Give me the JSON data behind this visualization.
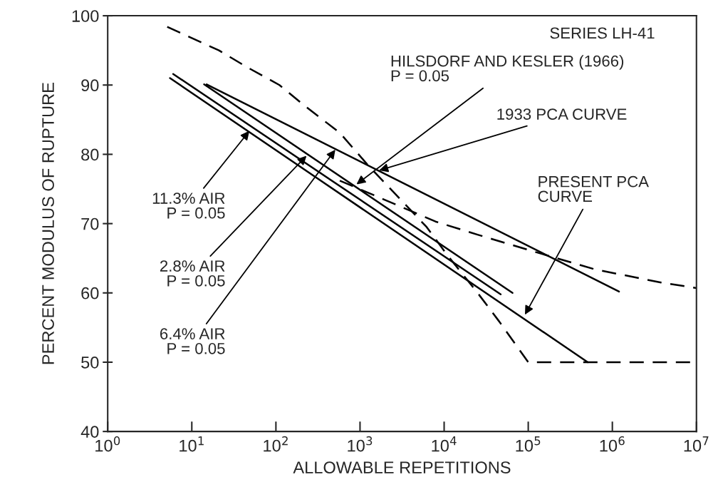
{
  "chart_data": {
    "type": "line",
    "xlabel": "ALLOWABLE REPETITIONS",
    "ylabel": "PERCENT MODULUS OF RUPTURE",
    "log": "x",
    "xlim": [
      1,
      10000000
    ],
    "ylim": [
      40,
      100
    ],
    "xticks": [
      {
        "value": 1,
        "label": "10$^{0}$"
      },
      {
        "value": 10,
        "label": "10$^{1}$"
      },
      {
        "value": 100,
        "label": "10$^{2}$"
      },
      {
        "value": 1000,
        "label": "10$^{3}$"
      },
      {
        "value": 10000,
        "label": "10$^{4}$"
      },
      {
        "value": 100000,
        "label": "10$^{5}$"
      },
      {
        "value": 1000000,
        "label": "10$^{6}$"
      },
      {
        "value": 10000000,
        "label": "10$^{7}$"
      }
    ],
    "yticks": [
      40,
      50,
      60,
      70,
      80,
      90,
      100
    ],
    "grid": false,
    "series": [
      {
        "color": "#000000",
        "line_style": "dashed",
        "x": [
          5.1,
          21,
          45,
          110,
          220,
          575,
          1230,
          6200,
          11000,
          25000,
          45000,
          100000,
          10000000
        ],
        "values": [
          98.4,
          95.0,
          92.6,
          90.0,
          87.0,
          83.1,
          78.5,
          69.5,
          65.4,
          60.0,
          55.9,
          50,
          50
        ]
      },
      {
        "color": "#000000",
        "line_style": "dashed",
        "x": [
          575,
          2000,
          7900,
          25000,
          130000,
          620000,
          3800000,
          10000000
        ],
        "values": [
          76.2,
          73.4,
          70.3,
          68.4,
          65.8,
          63.4,
          61.5,
          60.7
        ]
      },
      {
        "color": "#000000",
        "line_style": "solid",
        "x": [
          5.5,
          510000
        ],
        "values": [
          91.0,
          50
        ]
      },
      {
        "color": "#000000",
        "line_style": "solid",
        "x": [
          6,
          47000
        ],
        "values": [
          91.6,
          59.8
        ]
      },
      {
        "color": "#000000",
        "line_style": "solid",
        "x": [
          15,
          1200000
        ],
        "values": [
          90.1,
          60.2
        ]
      },
      {
        "color": "#000000",
        "line_style": "solid",
        "x": [
          14,
          65000
        ],
        "values": [
          90.1,
          60.0
        ]
      }
    ],
    "annotations": [
      "SERIES LH-41",
      {
        "text": "HILSDORF AND KESLER (1966)\nP = 0.05",
        "x": 870,
        "y": 75.5
      },
      {
        "text": "1933 PCA CURVE",
        "x": 1600,
        "y": 77.6
      },
      {
        "text": "PRESENT PCA\nCURVE",
        "x": 89000,
        "y": 56.6
      },
      {
        "text": "11.3% AIR\nP = 0.05",
        "x": 50,
        "y": 83.6
      },
      {
        "text": "2.8% AIR\nP = 0.05",
        "x": 240,
        "y": 80.0
      },
      {
        "text": "6.4% AIR\nP = 0.05",
        "x": 525,
        "y": 80.9
      }
    ]
  }
}
